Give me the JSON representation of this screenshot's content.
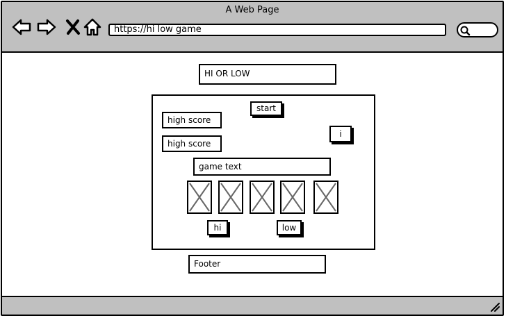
{
  "window": {
    "title": "A Web Page"
  },
  "browser": {
    "url": "https://hi low game",
    "icons": [
      "back-arrow-icon",
      "forward-arrow-icon",
      "close-x-icon",
      "home-icon",
      "search-icon"
    ]
  },
  "game": {
    "title": "HI OR LOW",
    "start_label": "start",
    "high_score_1": "high score",
    "high_score_2": "high score",
    "info_label": "i",
    "game_text": "game text",
    "card_count": 5,
    "hi_label": "hi",
    "low_label": "low"
  },
  "footer": {
    "label": "Footer"
  }
}
